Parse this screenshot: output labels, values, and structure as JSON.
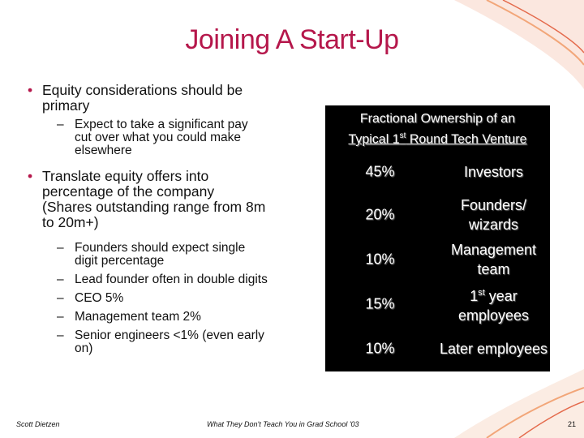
{
  "slide": {
    "title": "Joining A Start-Up",
    "bullets": [
      {
        "text": "Equity considerations should be primary",
        "subs": [
          "Expect to take a significant pay cut over what you could make elsewhere"
        ]
      },
      {
        "text": "Translate equity offers into percentage of the company (Shares outstanding range from 8m to 20m+)",
        "subs": [
          "Founders should expect single digit percentage",
          "Lead founder often in double digits",
          "CEO 5%",
          "Management team 2%",
          "Senior engineers <1% (even early on)"
        ]
      }
    ],
    "bullet_glyph": "•",
    "dash_glyph": "–"
  },
  "table": {
    "header_line1": "Fractional Ownership of an",
    "header_line2_pre": "Typical 1",
    "header_line2_sup": "st",
    "header_line2_post": " Round Tech Venture",
    "rows": [
      {
        "pct": "45%",
        "who": "Investors"
      },
      {
        "pct": "20%",
        "who": "Founders/ wizards"
      },
      {
        "pct": "10%",
        "who": "Management team"
      },
      {
        "pct": "15%",
        "who_pre": "1",
        "who_sup": "st",
        "who_post": " year employees"
      },
      {
        "pct": "10%",
        "who": "Later employees"
      }
    ]
  },
  "footer": {
    "left": "Scott Dietzen",
    "center": "What They Don't Teach You in Grad School '03",
    "page": "21"
  },
  "colors": {
    "title": "#b5174b",
    "table_bg": "#000000",
    "accent_red": "#c8102e",
    "accent_orange": "#f28c28"
  }
}
